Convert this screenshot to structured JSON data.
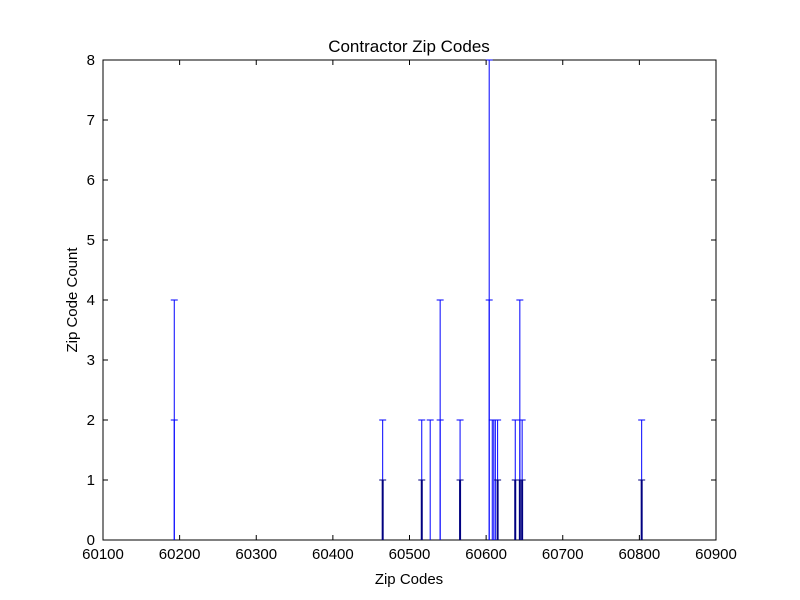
{
  "chart_data": {
    "type": "bar",
    "title": "Contractor Zip Codes",
    "xlabel": "Zip Codes",
    "ylabel": "Zip Code Count",
    "xlim": [
      60100,
      60900
    ],
    "ylim": [
      0,
      8
    ],
    "x_ticks": [
      60100,
      60200,
      60300,
      60400,
      60500,
      60600,
      60700,
      60800,
      60900
    ],
    "y_ticks": [
      0,
      1,
      2,
      3,
      4,
      5,
      6,
      7,
      8
    ],
    "grid": false,
    "legend": "none",
    "colors": {
      "outline": "#0000ff",
      "inner": "#000080",
      "axes": "#000000"
    },
    "series": [
      {
        "zip": [
          60193,
          60193,
          60193,
          60465,
          60465,
          60465,
          60516,
          60516,
          60516,
          60527,
          60540,
          60540,
          60566,
          60566,
          60566,
          60604,
          60604,
          60604,
          60608,
          60610,
          60612,
          60615,
          60615,
          60638,
          60638,
          60644,
          60644,
          60644,
          60647,
          60647,
          60647,
          60803,
          60803,
          60803
        ],
        "count": [
          4,
          2,
          0,
          2,
          1,
          0,
          2,
          1,
          0,
          2,
          4,
          2,
          2,
          1,
          0,
          8,
          4,
          0,
          2,
          2,
          2,
          2,
          1,
          2,
          1,
          4,
          2,
          1,
          2,
          1,
          0,
          2,
          1,
          0
        ]
      }
    ]
  }
}
